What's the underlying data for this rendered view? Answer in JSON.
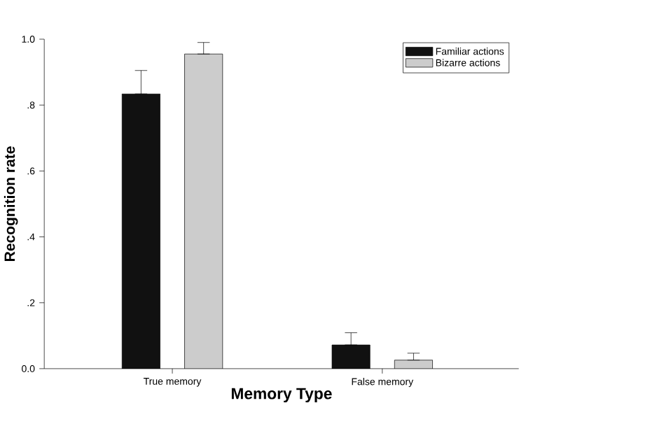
{
  "chart_data": {
    "type": "bar",
    "xlabel": "Memory Type",
    "ylabel": "Recognition rate",
    "categories": [
      "True memory",
      "False memory"
    ],
    "series": [
      {
        "name": "Familiar actions",
        "color": "#111111",
        "values": [
          0.834,
          0.072
        ],
        "errors": [
          [
            0.834,
            0.905
          ],
          [
            0.072,
            0.109
          ]
        ]
      },
      {
        "name": "Bizarre actions",
        "color": "#cccccc",
        "values": [
          0.955,
          0.026
        ],
        "errors": [
          [
            0.955,
            0.99
          ],
          [
            0.026,
            0.047
          ]
        ]
      }
    ],
    "ylim": [
      0,
      1
    ],
    "yticks": [
      {
        "value": 0,
        "label": "0.0"
      },
      {
        "value": 0.2,
        "label": ".2"
      },
      {
        "value": 0.4,
        "label": ".4"
      },
      {
        "value": 0.6,
        "label": ".6"
      },
      {
        "value": 0.8,
        "label": ".8"
      },
      {
        "value": 1,
        "label": "1.0"
      }
    ],
    "grid": false,
    "legend": "top right"
  }
}
